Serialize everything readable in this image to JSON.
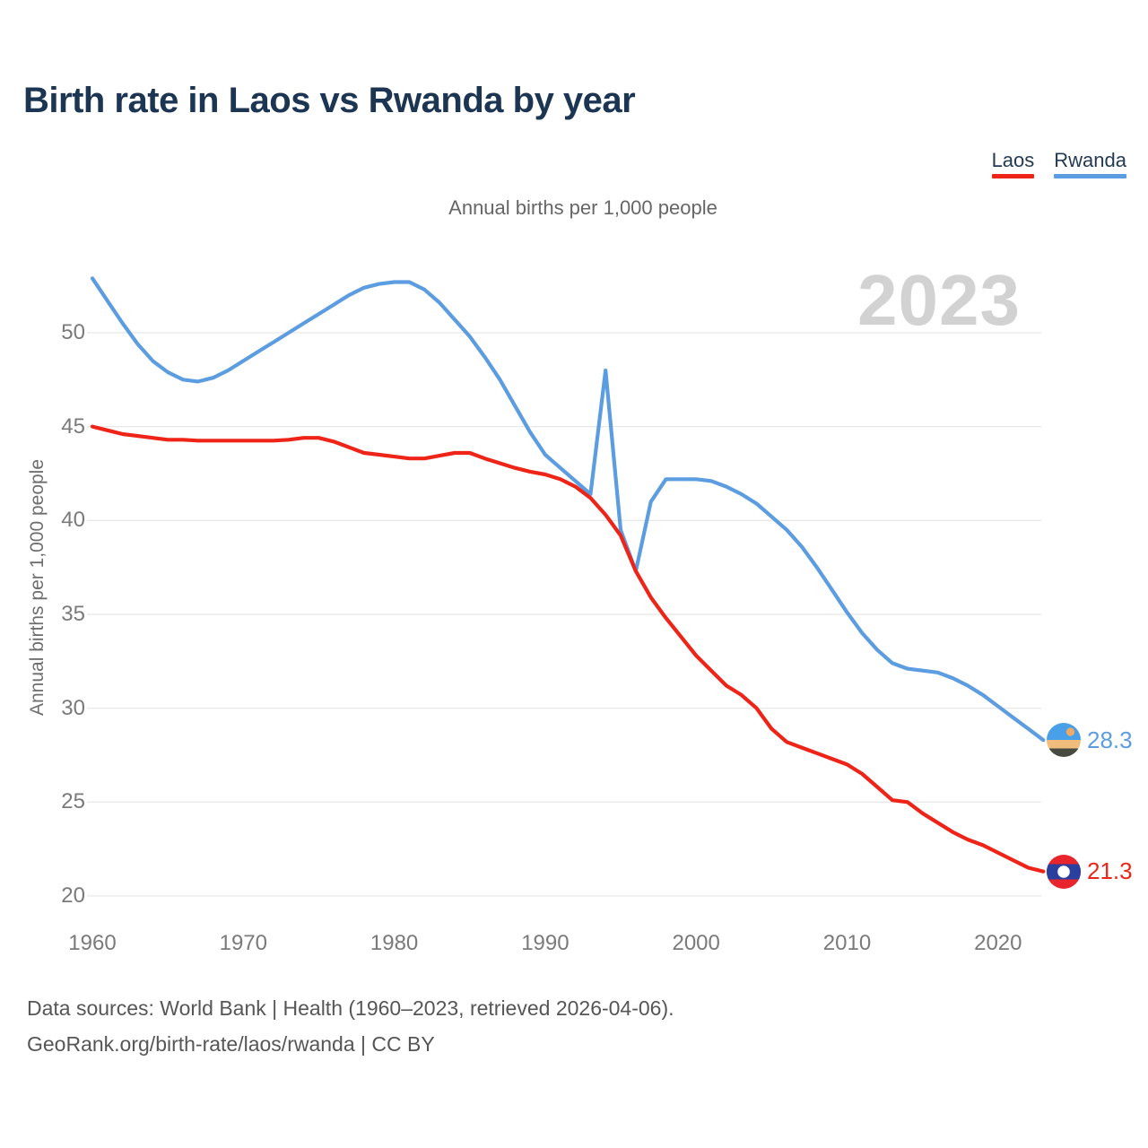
{
  "header": {
    "title": "Birth rate in Laos vs Rwanda by year",
    "subtitle": "Annual births per 1,000 people",
    "legend": {
      "items": [
        {
          "label": "Laos",
          "color": "#ee2418"
        },
        {
          "label": "Rwanda",
          "color": "#5b9de0"
        }
      ]
    }
  },
  "watermark": {
    "text": "2023"
  },
  "end_labels": {
    "rwanda": {
      "value": "28.3",
      "color": "#5b9de0",
      "flag": "rwanda-flag"
    },
    "laos": {
      "value": "21.3",
      "color": "#ee2418",
      "flag": "laos-flag"
    }
  },
  "footer": {
    "line1": "Data sources: World Bank | Health (1960–2023, retrieved 2026-04-06).",
    "line2": "GeoRank.org/birth-rate/laos/rwanda | CC BY"
  },
  "chart_data": {
    "type": "line",
    "title": "Birth rate in Laos vs Rwanda by year",
    "subtitle": "Annual births per 1,000 people",
    "ylabel": "Annual births per 1,000 people",
    "xlabel": "",
    "xlim": [
      1960,
      2023
    ],
    "ylim": [
      20,
      53
    ],
    "y_ticks": [
      50,
      45,
      40,
      35,
      30,
      25,
      20
    ],
    "x_ticks": [
      1960,
      1970,
      1980,
      1990,
      2000,
      2010,
      2020
    ],
    "grid": "horizontal",
    "legend_position": "top-right",
    "x": [
      1960,
      1961,
      1962,
      1963,
      1964,
      1965,
      1966,
      1967,
      1968,
      1969,
      1970,
      1971,
      1972,
      1973,
      1974,
      1975,
      1976,
      1977,
      1978,
      1979,
      1980,
      1981,
      1982,
      1983,
      1984,
      1985,
      1986,
      1987,
      1988,
      1989,
      1990,
      1991,
      1992,
      1993,
      1994,
      1995,
      1996,
      1997,
      1998,
      1999,
      2000,
      2001,
      2002,
      2003,
      2004,
      2005,
      2006,
      2007,
      2008,
      2009,
      2010,
      2011,
      2012,
      2013,
      2014,
      2015,
      2016,
      2017,
      2018,
      2019,
      2020,
      2021,
      2022,
      2023
    ],
    "series": [
      {
        "name": "Laos",
        "color": "#ee2418",
        "values": [
          45.0,
          44.8,
          44.6,
          44.5,
          44.4,
          44.3,
          44.3,
          44.25,
          44.25,
          44.25,
          44.25,
          44.25,
          44.25,
          44.3,
          44.4,
          44.4,
          44.2,
          43.9,
          43.6,
          43.5,
          43.4,
          43.3,
          43.3,
          43.45,
          43.6,
          43.6,
          43.3,
          43.05,
          42.8,
          42.6,
          42.45,
          42.2,
          41.8,
          41.2,
          40.3,
          39.2,
          37.3,
          35.9,
          34.8,
          33.8,
          32.8,
          32.0,
          31.2,
          30.7,
          30.0,
          28.9,
          28.2,
          27.9,
          27.6,
          27.3,
          27.0,
          26.5,
          25.8,
          25.1,
          25.0,
          24.4,
          23.9,
          23.4,
          23.0,
          22.7,
          22.3,
          21.9,
          21.5,
          21.3
        ]
      },
      {
        "name": "Rwanda",
        "color": "#5b9de0",
        "values": [
          52.9,
          51.7,
          50.5,
          49.4,
          48.5,
          47.9,
          47.5,
          47.4,
          47.6,
          48.0,
          48.5,
          49.0,
          49.5,
          50.0,
          50.5,
          51.0,
          51.5,
          52.0,
          52.4,
          52.6,
          52.7,
          52.7,
          52.3,
          51.6,
          50.7,
          49.8,
          48.7,
          47.5,
          46.1,
          44.7,
          43.5,
          42.8,
          42.1,
          41.4,
          48.0,
          39.5,
          37.3,
          41.0,
          42.2,
          42.2,
          42.2,
          42.1,
          41.8,
          41.4,
          40.9,
          40.2,
          39.5,
          38.6,
          37.5,
          36.3,
          35.1,
          34.0,
          33.1,
          32.4,
          32.1,
          32.0,
          31.9,
          31.6,
          31.2,
          30.7,
          30.1,
          29.5,
          28.9,
          28.3
        ]
      }
    ],
    "end_values": {
      "Rwanda": 28.3,
      "Laos": 21.3
    }
  }
}
